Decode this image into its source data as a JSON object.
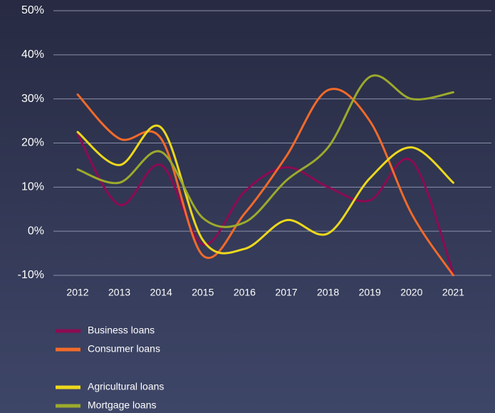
{
  "chart_data": {
    "type": "line",
    "categories": [
      "2012",
      "2013",
      "2014",
      "2015",
      "2016",
      "2017",
      "2018",
      "2019",
      "2020",
      "2021"
    ],
    "series": [
      {
        "name": "Business loans",
        "color": "#8c0b52",
        "values": [
          22,
          6,
          15,
          -3,
          9,
          14.5,
          10,
          7,
          16,
          -9.5
        ]
      },
      {
        "name": "Consumer loans",
        "color": "#f26a2a",
        "values": [
          31,
          21,
          21,
          -5.5,
          4,
          17,
          32,
          25,
          4,
          -10
        ]
      },
      {
        "name": "Agricultural loans",
        "color": "#ecd81c",
        "values": [
          22.5,
          15,
          23.5,
          -2,
          -4,
          2.5,
          -0.5,
          12,
          19,
          11
        ]
      },
      {
        "name": "Mortgage loans",
        "color": "#9caa2c",
        "values": [
          14,
          11,
          18,
          3,
          2,
          11.5,
          19,
          35,
          30,
          31.5
        ]
      }
    ],
    "ylim": [
      -10,
      50
    ],
    "yticks": [
      {
        "value": -10,
        "label": "-10%"
      },
      {
        "value": 0,
        "label": "0%"
      },
      {
        "value": 10,
        "label": "10%"
      },
      {
        "value": 20,
        "label": "20%"
      },
      {
        "value": 30,
        "label": "30%"
      },
      {
        "value": 40,
        "label": "40%"
      },
      {
        "value": 50,
        "label": "50%"
      }
    ],
    "grid": true,
    "smooth": true
  }
}
